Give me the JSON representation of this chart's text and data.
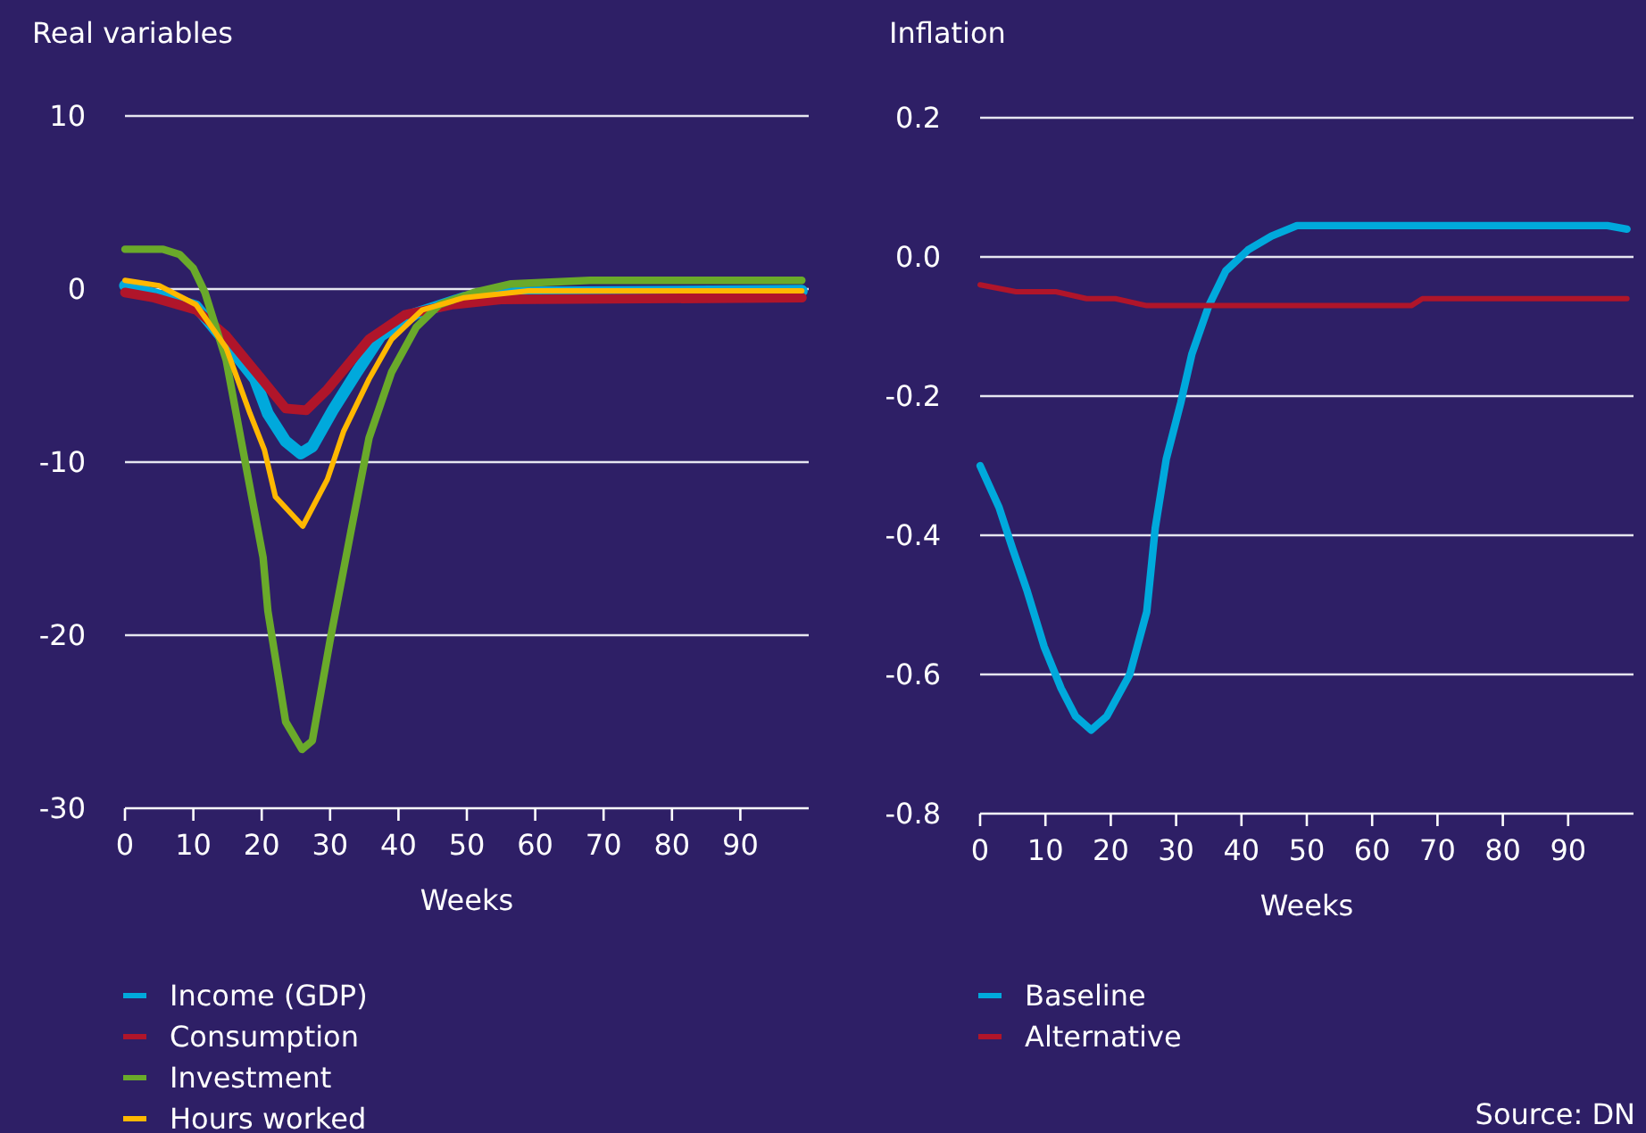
{
  "chart_data": [
    {
      "type": "line",
      "title": "Real variables",
      "xlabel": "Weeks",
      "xlim": [
        0,
        100
      ],
      "xticks": [
        0,
        10,
        20,
        30,
        40,
        50,
        60,
        70,
        80,
        90
      ],
      "ylim": [
        -30,
        10
      ],
      "yticks": [
        -30,
        -20,
        -10,
        0,
        10
      ],
      "grid": "y",
      "legend": "bottom",
      "series": [
        {
          "name": "Income (GDP)",
          "color": "#00a9dc",
          "x": [
            0,
            10.4,
            14.8,
            19,
            20.9,
            23.5,
            25.7,
            27.4,
            30.4,
            33.9,
            37.4,
            42.6,
            49.6,
            58,
            99
          ],
          "values": [
            0.2,
            -1,
            -3.1,
            -5.2,
            -7.2,
            -8.8,
            -9.5,
            -9.1,
            -7,
            -4.8,
            -2.7,
            -1.4,
            -0.5,
            -0.2,
            -0.1
          ]
        },
        {
          "name": "Consumption",
          "color": "#b0152a",
          "x": [
            0,
            4.3,
            10.4,
            14.8,
            20,
            23.5,
            26.5,
            29.6,
            35.7,
            40.9,
            47.8,
            55,
            99
          ],
          "values": [
            -0.2,
            -0.5,
            -1.2,
            -2.7,
            -5.2,
            -6.9,
            -7,
            -5.8,
            -2.9,
            -1.5,
            -0.9,
            -0.6,
            -0.5
          ]
        },
        {
          "name": "Investment",
          "color": "#6aaa2a",
          "x": [
            0,
            5.6,
            8,
            10,
            11.7,
            14.8,
            17.4,
            20.2,
            20.9,
            23.5,
            25.9,
            27.4,
            30,
            33,
            35.7,
            39,
            42.6,
            46,
            51,
            56.5,
            68,
            99
          ],
          "values": [
            2.3,
            2.3,
            2,
            1.2,
            -0.2,
            -4.1,
            -9.6,
            -15.5,
            -18.6,
            -25,
            -26.6,
            -26.1,
            -20.3,
            -14.1,
            -8.6,
            -4.8,
            -2.2,
            -0.9,
            -0.2,
            0.3,
            0.5,
            0.5
          ]
        },
        {
          "name": "Hours worked",
          "color": "#ffb800",
          "x": [
            0,
            5,
            10.4,
            14.8,
            18.3,
            20.4,
            22,
            26,
            29.6,
            32,
            35.7,
            39,
            43.5,
            49.6,
            59,
            99
          ],
          "values": [
            0.5,
            0.2,
            -0.9,
            -3.4,
            -7.2,
            -9.3,
            -12,
            -13.7,
            -11,
            -8.2,
            -5.2,
            -2.9,
            -1.2,
            -0.5,
            -0.1,
            -0.1
          ]
        }
      ]
    },
    {
      "type": "line",
      "title": "Inflation",
      "xlabel": "Weeks",
      "xlim": [
        0,
        100
      ],
      "xticks": [
        0,
        10,
        20,
        30,
        40,
        50,
        60,
        70,
        80,
        90
      ],
      "ylim": [
        -0.8,
        0.2
      ],
      "yticks": [
        {
          "value": -0.8,
          "label": "-0.8"
        },
        {
          "value": -0.6,
          "label": "-0.6"
        },
        {
          "value": -0.4,
          "label": "-0.4"
        },
        {
          "value": -0.2,
          "label": "-0.2"
        },
        {
          "value": 0,
          "label": "0.0"
        },
        {
          "value": 0.2,
          "label": "0.2"
        }
      ],
      "grid": "y",
      "legend": "bottom",
      "annotations": [
        "Source: DN"
      ],
      "series": [
        {
          "name": "Baseline",
          "color": "#00a9dc",
          "x": [
            0,
            2.9,
            5,
            7.2,
            9.8,
            12.4,
            14.6,
            17,
            19.4,
            22.9,
            25.5,
            26.8,
            28.5,
            30.7,
            32.4,
            35,
            37.6,
            41,
            44.6,
            48.5,
            96,
            99
          ],
          "values": [
            -0.3,
            -0.36,
            -0.42,
            -0.48,
            -0.56,
            -0.62,
            -0.66,
            -0.68,
            -0.66,
            -0.6,
            -0.51,
            -0.39,
            -0.29,
            -0.21,
            -0.14,
            -0.07,
            -0.02,
            0.01,
            0.03,
            0.045,
            0.045,
            0.04
          ]
        },
        {
          "name": "Alternative",
          "color": "#b0152a",
          "x": [
            0,
            5.5,
            11.6,
            16.3,
            20.7,
            25.5,
            66,
            67.7,
            99
          ],
          "values": [
            -0.04,
            -0.05,
            -0.05,
            -0.06,
            -0.06,
            -0.07,
            -0.07,
            -0.06,
            -0.06
          ]
        }
      ]
    }
  ]
}
